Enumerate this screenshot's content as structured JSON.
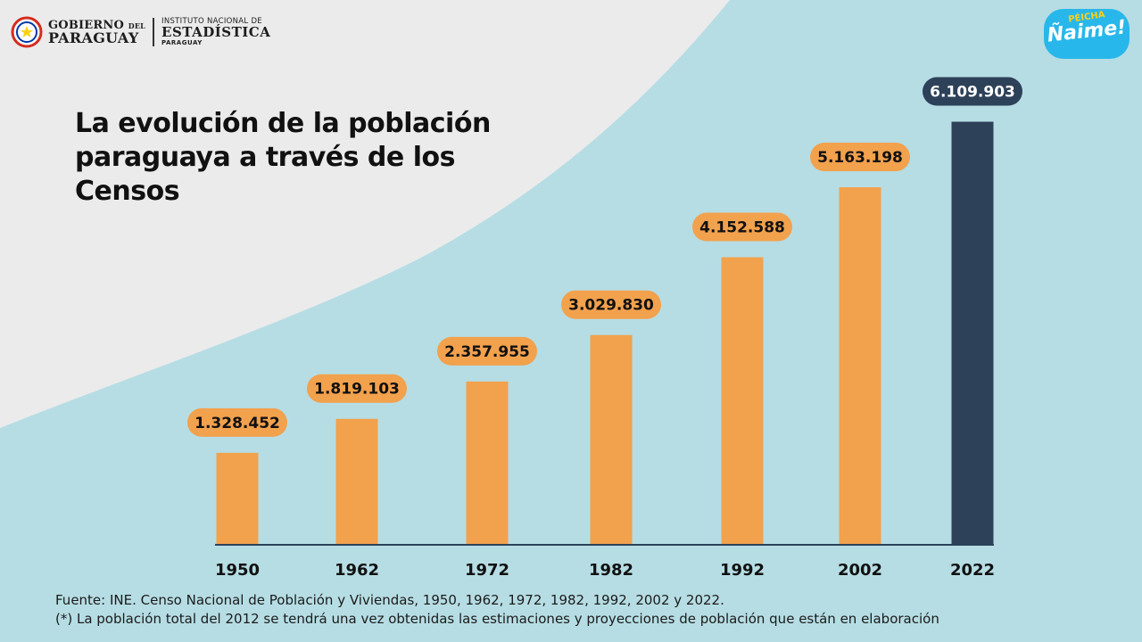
{
  "header": {
    "gov_line1": "GOBIERNO",
    "gov_line1_small": "DEL",
    "gov_line2": "PARAGUAY",
    "ine_line1": "INSTITUTO NACIONAL DE",
    "ine_line2": "ESTADÍSTICA",
    "ine_line3": "PARAGUAY",
    "brand_sub": "PÉICHA",
    "brand_main": "Ñaime!"
  },
  "colors": {
    "background": "#b6dde4",
    "wave": "#ebebeb",
    "bar": "#f2a14d",
    "bar_highlight": "#2d4159",
    "label_text_on_orange": "#111111",
    "label_text_on_dark": "#ffffff"
  },
  "chart_data": {
    "type": "bar",
    "title": "La evolución de la población paraguaya a través de los Censos",
    "categories": [
      "1950",
      "1962",
      "1972",
      "1982",
      "1992",
      "2002",
      "2022"
    ],
    "values": [
      1328452,
      1819103,
      2357955,
      3029830,
      4152588,
      5163198,
      6109903
    ],
    "value_labels": [
      "1.328.452",
      "1.819.103",
      "2.357.955",
      "3.029.830",
      "4.152.588",
      "5.163.198",
      "6.109.903"
    ],
    "highlight_category": "2022",
    "xlabel": "",
    "ylabel": "",
    "ylim": [
      0,
      6490000
    ],
    "grid": false
  },
  "footer": {
    "source": "Fuente: INE. Censo Nacional de Población y Viviendas, 1950, 1962, 1972, 1982, 1992, 2002 y 2022.",
    "note": "(*) La población total del 2012 se tendrá una vez obtenidas las estimaciones y proyecciones de población que están en elaboración"
  }
}
